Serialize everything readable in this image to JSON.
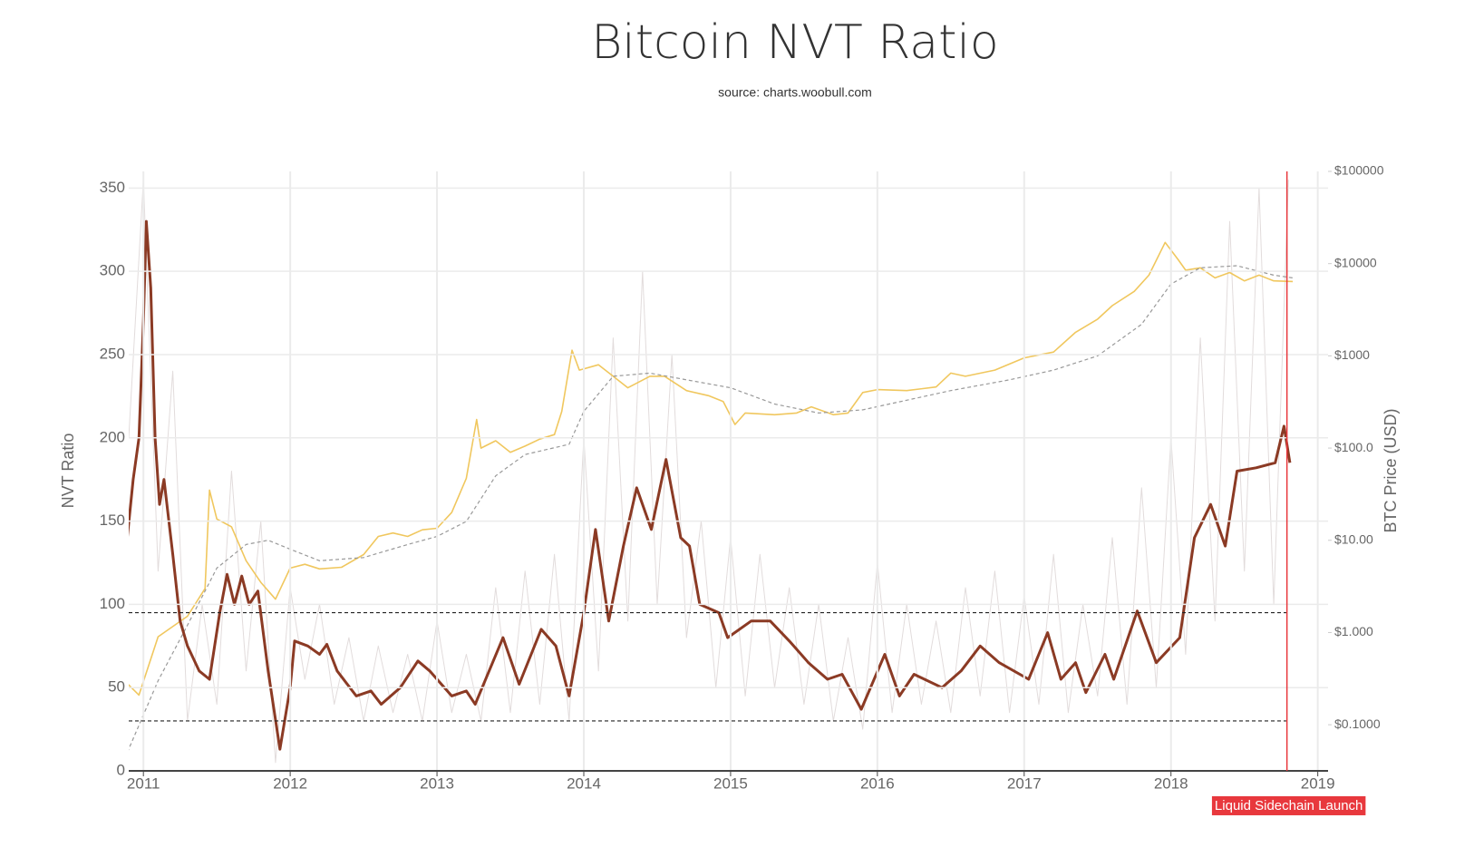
{
  "chart_data": {
    "type": "line",
    "title": "Bitcoin NVT Ratio",
    "subtitle": "source: charts.woobull.com",
    "y_label": "NVT Ratio",
    "y2_label": "BTC Price (USD)",
    "xlim": [
      2010.9,
      2019.07
    ],
    "xticks": [
      2011,
      2012,
      2013,
      2014,
      2015,
      2016,
      2017,
      2018,
      2019
    ],
    "ylim": [
      0,
      360
    ],
    "yticks": [
      0,
      50,
      100,
      150,
      200,
      250,
      300,
      350
    ],
    "y2lim": [
      0.0316,
      100000
    ],
    "y2_log": true,
    "y2ticks": [
      {
        "value": 0.1,
        "label": "$0.1000"
      },
      {
        "value": 1,
        "label": "$1.000"
      },
      {
        "value": 10,
        "label": "$10.00"
      },
      {
        "value": 100,
        "label": "$100.0"
      },
      {
        "value": 1000,
        "label": "$1000"
      },
      {
        "value": 10000,
        "label": "$10000"
      },
      {
        "value": 100000,
        "label": "$100000"
      }
    ],
    "grid": true,
    "reference_lines": [
      95,
      30
    ],
    "event": {
      "x": 2018.79,
      "label": "Liquid Sidechain Launch",
      "color": "#e8383d"
    },
    "series": [
      {
        "color": "#e2dcdc",
        "width": 1,
        "x": [
          2010.9,
          2011.0,
          2011.1,
          2011.2,
          2011.3,
          2011.4,
          2011.5,
          2011.6,
          2011.7,
          2011.8,
          2011.9,
          2012.0,
          2012.1,
          2012.2,
          2012.3,
          2012.4,
          2012.5,
          2012.6,
          2012.7,
          2012.8,
          2012.9,
          2013.0,
          2013.1,
          2013.2,
          2013.3,
          2013.4,
          2013.5,
          2013.6,
          2013.7,
          2013.8,
          2013.9,
          2014.0,
          2014.1,
          2014.2,
          2014.3,
          2014.4,
          2014.5,
          2014.6,
          2014.7,
          2014.8,
          2014.9,
          2015.0,
          2015.1,
          2015.2,
          2015.3,
          2015.4,
          2015.5,
          2015.6,
          2015.7,
          2015.8,
          2015.9,
          2016.0,
          2016.1,
          2016.2,
          2016.3,
          2016.4,
          2016.5,
          2016.6,
          2016.7,
          2016.8,
          2016.9,
          2017.0,
          2017.1,
          2017.2,
          2017.3,
          2017.4,
          2017.5,
          2017.6,
          2017.7,
          2017.8,
          2017.9,
          2018.0,
          2018.1,
          2018.2,
          2018.3,
          2018.4,
          2018.5,
          2018.6,
          2018.7,
          2018.8
        ],
        "values": [
          200,
          355,
          120,
          240,
          30,
          100,
          40,
          180,
          60,
          150,
          5,
          110,
          55,
          100,
          40,
          80,
          30,
          75,
          35,
          70,
          30,
          90,
          35,
          70,
          30,
          110,
          35,
          120,
          40,
          130,
          30,
          200,
          60,
          260,
          90,
          300,
          100,
          250,
          80,
          150,
          50,
          140,
          45,
          130,
          50,
          110,
          40,
          100,
          30,
          80,
          25,
          125,
          35,
          100,
          40,
          90,
          35,
          110,
          45,
          120,
          35,
          105,
          40,
          130,
          35,
          100,
          45,
          140,
          40,
          170,
          50,
          200,
          70,
          260,
          90,
          330,
          120,
          350,
          100,
          355
        ]
      },
      {
        "color": "#f0c75e",
        "width": 1.6,
        "axis": "y2",
        "x": [
          2010.89,
          2010.97,
          2011.1,
          2011.3,
          2011.42,
          2011.45,
          2011.5,
          2011.6,
          2011.7,
          2011.8,
          2011.9,
          2012.0,
          2012.1,
          2012.2,
          2012.35,
          2012.5,
          2012.6,
          2012.7,
          2012.8,
          2012.9,
          2013.0,
          2013.1,
          2013.2,
          2013.27,
          2013.3,
          2013.4,
          2013.5,
          2013.6,
          2013.7,
          2013.8,
          2013.85,
          2013.92,
          2013.97,
          2014.1,
          2014.2,
          2014.3,
          2014.45,
          2014.55,
          2014.7,
          2014.85,
          2014.95,
          2015.03,
          2015.1,
          2015.3,
          2015.45,
          2015.55,
          2015.7,
          2015.8,
          2015.9,
          2016.0,
          2016.2,
          2016.4,
          2016.5,
          2016.6,
          2016.8,
          2017.0,
          2017.2,
          2017.35,
          2017.5,
          2017.6,
          2017.75,
          2017.85,
          2017.96,
          2018.05,
          2018.1,
          2018.2,
          2018.3,
          2018.4,
          2018.5,
          2018.6,
          2018.7,
          2018.83
        ],
        "values": [
          0.28,
          0.21,
          0.9,
          1.5,
          3,
          35,
          17,
          14,
          6,
          3.5,
          2.3,
          5,
          5.5,
          4.9,
          5.1,
          7,
          11,
          12,
          11,
          13,
          13.5,
          20,
          47,
          204,
          100,
          120,
          90,
          105,
          125,
          140,
          250,
          1150,
          700,
          800,
          600,
          450,
          600,
          600,
          420,
          370,
          320,
          180,
          240,
          230,
          240,
          280,
          230,
          240,
          400,
          430,
          420,
          460,
          650,
          600,
          700,
          950,
          1100,
          1800,
          2500,
          3500,
          5000,
          7500,
          17000,
          11000,
          8500,
          9000,
          7000,
          8000,
          6500,
          7500,
          6500,
          6400
        ]
      },
      {
        "color": "#999999",
        "width": 1.2,
        "axis": "y2",
        "dash": true,
        "x": [
          2010.89,
          2011.1,
          2011.3,
          2011.5,
          2011.7,
          2011.85,
          2012.0,
          2012.2,
          2012.5,
          2012.8,
          2013.0,
          2013.2,
          2013.4,
          2013.6,
          2013.9,
          2014.0,
          2014.2,
          2014.45,
          2014.7,
          2015.0,
          2015.3,
          2015.6,
          2015.9,
          2016.2,
          2016.5,
          2016.9,
          2017.2,
          2017.5,
          2017.8,
          2018.0,
          2018.2,
          2018.45,
          2018.7,
          2018.83
        ],
        "values": [
          0.05,
          0.3,
          1.2,
          5,
          9,
          10,
          8,
          6,
          6.5,
          9,
          11,
          16,
          50,
          85,
          110,
          250,
          600,
          650,
          550,
          450,
          300,
          240,
          260,
          330,
          420,
          550,
          700,
          1000,
          2200,
          6000,
          9000,
          9500,
          7500,
          7000
        ]
      },
      {
        "color": "#8b3a24",
        "width": 3,
        "x": [
          2010.89,
          2010.93,
          2010.97,
          2011.0,
          2011.02,
          2011.05,
          2011.08,
          2011.11,
          2011.14,
          2011.2,
          2011.25,
          2011.3,
          2011.38,
          2011.45,
          2011.52,
          2011.57,
          2011.62,
          2011.67,
          2011.72,
          2011.78,
          2011.85,
          2011.93,
          2012.0,
          2012.03,
          2012.12,
          2012.2,
          2012.25,
          2012.32,
          2012.45,
          2012.55,
          2012.62,
          2012.75,
          2012.87,
          2012.95,
          2013.1,
          2013.2,
          2013.26,
          2013.45,
          2013.56,
          2013.71,
          2013.81,
          2013.9,
          2014.0,
          2014.08,
          2014.17,
          2014.27,
          2014.36,
          2014.46,
          2014.56,
          2014.66,
          2014.72,
          2014.79,
          2014.92,
          2014.98,
          2015.14,
          2015.27,
          2015.4,
          2015.53,
          2015.66,
          2015.76,
          2015.89,
          2016.05,
          2016.15,
          2016.25,
          2016.44,
          2016.57,
          2016.7,
          2016.83,
          2017.03,
          2017.16,
          2017.25,
          2017.35,
          2017.42,
          2017.55,
          2017.61,
          2017.77,
          2017.9,
          2018.06,
          2018.16,
          2018.27,
          2018.37,
          2018.45,
          2018.58,
          2018.71,
          2018.77,
          2018.81
        ],
        "values": [
          140,
          175,
          200,
          270,
          330,
          290,
          200,
          160,
          175,
          130,
          90,
          75,
          60,
          55,
          95,
          118,
          100,
          117,
          100,
          108,
          60,
          13,
          50,
          78,
          75,
          70,
          76,
          60,
          45,
          48,
          40,
          50,
          66,
          60,
          45,
          48,
          40,
          80,
          52,
          85,
          75,
          45,
          95,
          145,
          90,
          135,
          170,
          145,
          187,
          140,
          135,
          100,
          95,
          80,
          90,
          90,
          78,
          65,
          55,
          58,
          37,
          70,
          45,
          58,
          50,
          60,
          75,
          65,
          55,
          83,
          55,
          65,
          47,
          70,
          55,
          96,
          65,
          80,
          140,
          160,
          135,
          180,
          182,
          185,
          207,
          185
        ]
      }
    ]
  }
}
